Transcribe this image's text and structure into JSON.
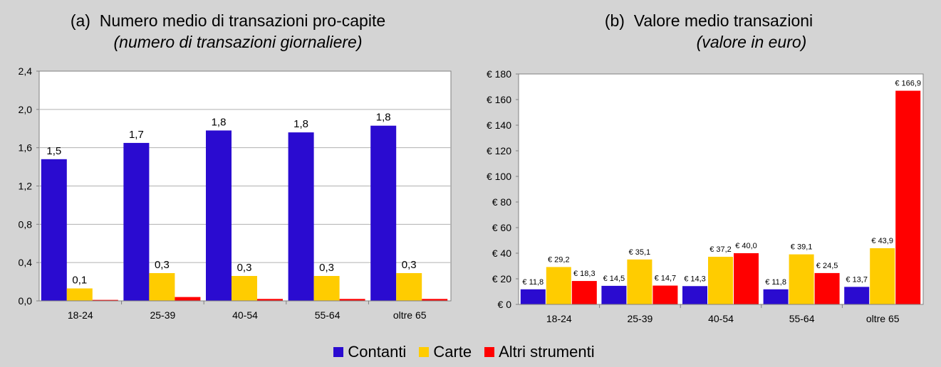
{
  "colors": {
    "contanti": "#2a0bd0",
    "carte": "#ffcc00",
    "altri": "#ff0000",
    "plot_bg": "#ffffff",
    "page_bg": "#d4d4d4"
  },
  "legend": {
    "items": [
      {
        "label": "Contanti",
        "color": "#2a0bd0"
      },
      {
        "label": "Carte",
        "color": "#ffcc00"
      },
      {
        "label": "Altri strumenti",
        "color": "#ff0000"
      }
    ],
    "placement": "bottom-center"
  },
  "chart_data": [
    {
      "type": "bar",
      "title": "(a)  Numero medio di transazioni pro-capite",
      "subtitle": "(numero di transazioni giornaliere)",
      "xlabel": "",
      "ylabel": "",
      "categories": [
        "18-24",
        "25-39",
        "40-54",
        "55-64",
        "oltre 65"
      ],
      "ylim": [
        0,
        2.4
      ],
      "yticks": [
        "0,0",
        "0,4",
        "0,8",
        "1,2",
        "1,6",
        "2,0",
        "2,4"
      ],
      "ytick_values": [
        0,
        0.4,
        0.8,
        1.2,
        1.6,
        2.0,
        2.4
      ],
      "grid": true,
      "series": [
        {
          "name": "Contanti",
          "values": [
            1.48,
            1.65,
            1.78,
            1.76,
            1.83
          ],
          "labels": [
            "1,5",
            "1,7",
            "1,8",
            "1,8",
            "1,8"
          ]
        },
        {
          "name": "Carte",
          "values": [
            0.13,
            0.29,
            0.26,
            0.26,
            0.29
          ],
          "labels": [
            "0,1",
            "0,3",
            "0,3",
            "0,3",
            "0,3"
          ]
        },
        {
          "name": "Altri strumenti",
          "values": [
            0.01,
            0.04,
            0.02,
            0.02,
            0.02
          ],
          "labels": [
            "",
            "",
            "",
            "",
            ""
          ]
        }
      ]
    },
    {
      "type": "bar",
      "title": "(b)  Valore medio transazioni",
      "subtitle": "(valore in euro)",
      "xlabel": "",
      "ylabel": "",
      "categories": [
        "18-24",
        "25-39",
        "40-54",
        "55-64",
        "oltre 65"
      ],
      "ylim": [
        0,
        180
      ],
      "yticks": [
        "€ 0",
        "€ 20",
        "€ 40",
        "€ 60",
        "€ 80",
        "€ 100",
        "€ 120",
        "€ 140",
        "€ 160",
        "€ 180"
      ],
      "ytick_values": [
        0,
        20,
        40,
        60,
        80,
        100,
        120,
        140,
        160,
        180
      ],
      "grid": false,
      "series": [
        {
          "name": "Contanti",
          "values": [
            11.8,
            14.5,
            14.3,
            11.8,
            13.7
          ],
          "labels": [
            "€ 11,8",
            "€ 14,5",
            "€ 14,3",
            "€ 11,8",
            "€ 13,7"
          ]
        },
        {
          "name": "Carte",
          "values": [
            29.2,
            35.1,
            37.2,
            39.1,
            43.9
          ],
          "labels": [
            "€ 29,2",
            "€ 35,1",
            "€ 37,2",
            "€ 39,1",
            "€ 43,9"
          ]
        },
        {
          "name": "Altri strumenti",
          "values": [
            18.3,
            14.7,
            40.0,
            24.5,
            166.9
          ],
          "labels": [
            "€ 18,3",
            "€ 14,7",
            "€ 40,0",
            "€ 24,5",
            "€ 166,9"
          ]
        }
      ]
    }
  ]
}
